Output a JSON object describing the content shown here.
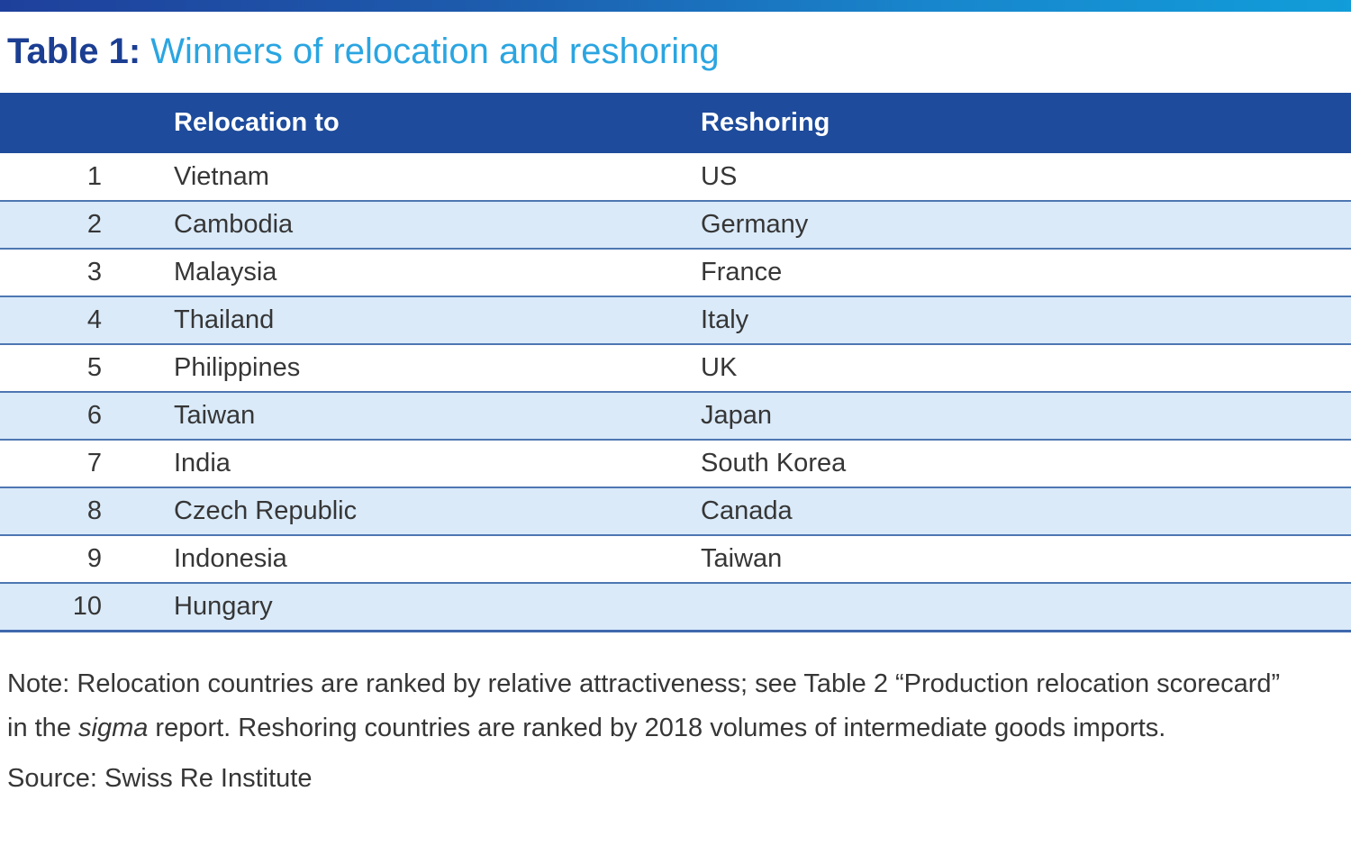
{
  "title": {
    "label": "Table 1:",
    "text": "Winners of relocation and reshoring"
  },
  "chart_data": {
    "type": "table",
    "title": "Table 1: Winners of relocation and reshoring",
    "columns": [
      "",
      "Relocation to",
      "Reshoring"
    ],
    "rows": [
      [
        "1",
        "Vietnam",
        "US"
      ],
      [
        "2",
        "Cambodia",
        "Germany"
      ],
      [
        "3",
        "Malaysia",
        "France"
      ],
      [
        "4",
        "Thailand",
        "Italy"
      ],
      [
        "5",
        "Philippines",
        "UK"
      ],
      [
        "6",
        "Taiwan",
        "Japan"
      ],
      [
        "7",
        "India",
        "South Korea"
      ],
      [
        "8",
        "Czech Republic",
        "Canada"
      ],
      [
        "9",
        "Indonesia",
        "Taiwan"
      ],
      [
        "10",
        "Hungary",
        ""
      ]
    ],
    "layout_hints": {
      "zebra_striping": true,
      "header_position": "top"
    }
  },
  "note": {
    "part1": "Note: Relocation countries are ranked by relative attractiveness; see Table 2 “Production relocation scorecard” in the ",
    "italic": "sigma",
    "part2": " report. Reshoring countries are ranked by 2018 volumes of intermediate goods imports."
  },
  "source": {
    "text": "Source: Swiss Re Institute"
  },
  "colors": {
    "bar_gradient_left": "#1e409c",
    "bar_gradient_right": "#119dd9",
    "title_dark_blue": "#1b3e92",
    "title_light_blue": "#2aa5e1",
    "header_background": "#1e4b9b",
    "header_text": "#ffffff",
    "alt_row_background": "#daeaf9",
    "row_border": "#4d77b2",
    "body_text": "#363636"
  }
}
